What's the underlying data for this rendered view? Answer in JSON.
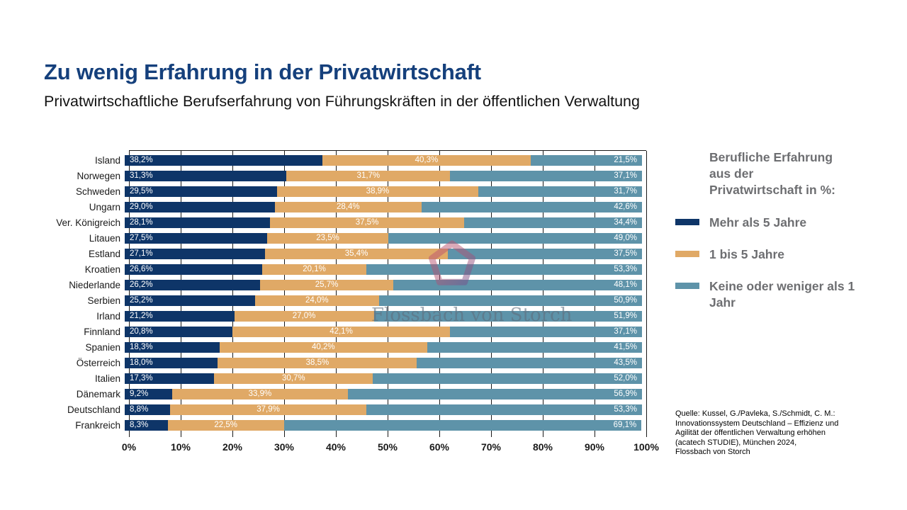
{
  "header": {
    "title": "Zu wenig Erfahrung in der Privatwirtschaft",
    "subtitle": "Privatwirtschaftliche Berufserfahrung von Führungskräften in der öffentlichen Verwaltung"
  },
  "chart_data": {
    "type": "bar",
    "orientation": "horizontal",
    "stacked": true,
    "unit": "%",
    "xlim": [
      0,
      100
    ],
    "grid": "vertical black lines every 10%, behind bars",
    "legend_position": "right",
    "x_ticks": [
      "0%",
      "10%",
      "20%",
      "30%",
      "40%",
      "50%",
      "60%",
      "70%",
      "80%",
      "90%",
      "100%"
    ],
    "categories": [
      "Island",
      "Norwegen",
      "Schweden",
      "Ungarn",
      "Ver. Königreich",
      "Litauen",
      "Estland",
      "Kroatien",
      "Niederlande",
      "Serbien",
      "Irland",
      "Finnland",
      "Spanien",
      "Österreich",
      "Italien",
      "Dänemark",
      "Deutschland",
      "Frankreich"
    ],
    "series": [
      {
        "name": "Mehr als 5 Jahre",
        "color": "#0E3568",
        "values": [
          38.2,
          31.3,
          29.5,
          29.0,
          28.1,
          27.5,
          27.1,
          26.6,
          26.2,
          25.2,
          21.2,
          20.8,
          18.3,
          18.0,
          17.3,
          9.2,
          8.8,
          8.3
        ]
      },
      {
        "name": "1 bis 5 Jahre",
        "color": "#E0A966",
        "values": [
          40.3,
          31.7,
          38.9,
          28.4,
          37.5,
          23.5,
          35.4,
          20.1,
          25.7,
          24.0,
          27.0,
          42.1,
          40.2,
          38.5,
          30.7,
          33.9,
          37.9,
          22.5
        ]
      },
      {
        "name": "Keine oder weniger als 1 Jahr",
        "color": "#5E93A9",
        "values": [
          21.5,
          37.1,
          31.7,
          42.6,
          34.4,
          49.0,
          37.5,
          53.3,
          48.1,
          50.9,
          51.9,
          37.1,
          41.5,
          43.5,
          52.0,
          56.9,
          53.3,
          69.1
        ]
      }
    ],
    "value_label_format": "german decimal comma, one decimal, percent sign, white text inside segment"
  },
  "legend": {
    "title_lines": [
      "Berufliche Erfahrung",
      "aus der",
      "Privatwirtschaft in %:"
    ],
    "items": [
      {
        "label": "Mehr als 5 Jahre",
        "color": "#0E3568"
      },
      {
        "label": "1 bis 5 Jahre",
        "color": "#E0A966"
      },
      {
        "label": "Keine oder weniger als 1 Jahr",
        "color": "#5E93A9"
      }
    ]
  },
  "watermark": {
    "text": "Flossbach von Storch",
    "logo": "pentagon-ring",
    "ring_colors": [
      "#c2556f",
      "#6f4f8e"
    ]
  },
  "source": {
    "lines": [
      "Quelle: Kussel, G./Pavleka, S./Schmidt, C. M.:",
      "Innovationssystem Deutschland – Effizienz und",
      "Agilität der öffentlichen Verwaltung erhöhen",
      "(acatech STUDIE), München 2024,",
      "Flossbach von Storch"
    ]
  },
  "colors": {
    "title": "#15407C",
    "subtitle": "#121212",
    "legend_text": "#6d6e71",
    "axis_text": "#1a1a1a",
    "gridline": "#1a1a1a",
    "background": "#ffffff"
  }
}
